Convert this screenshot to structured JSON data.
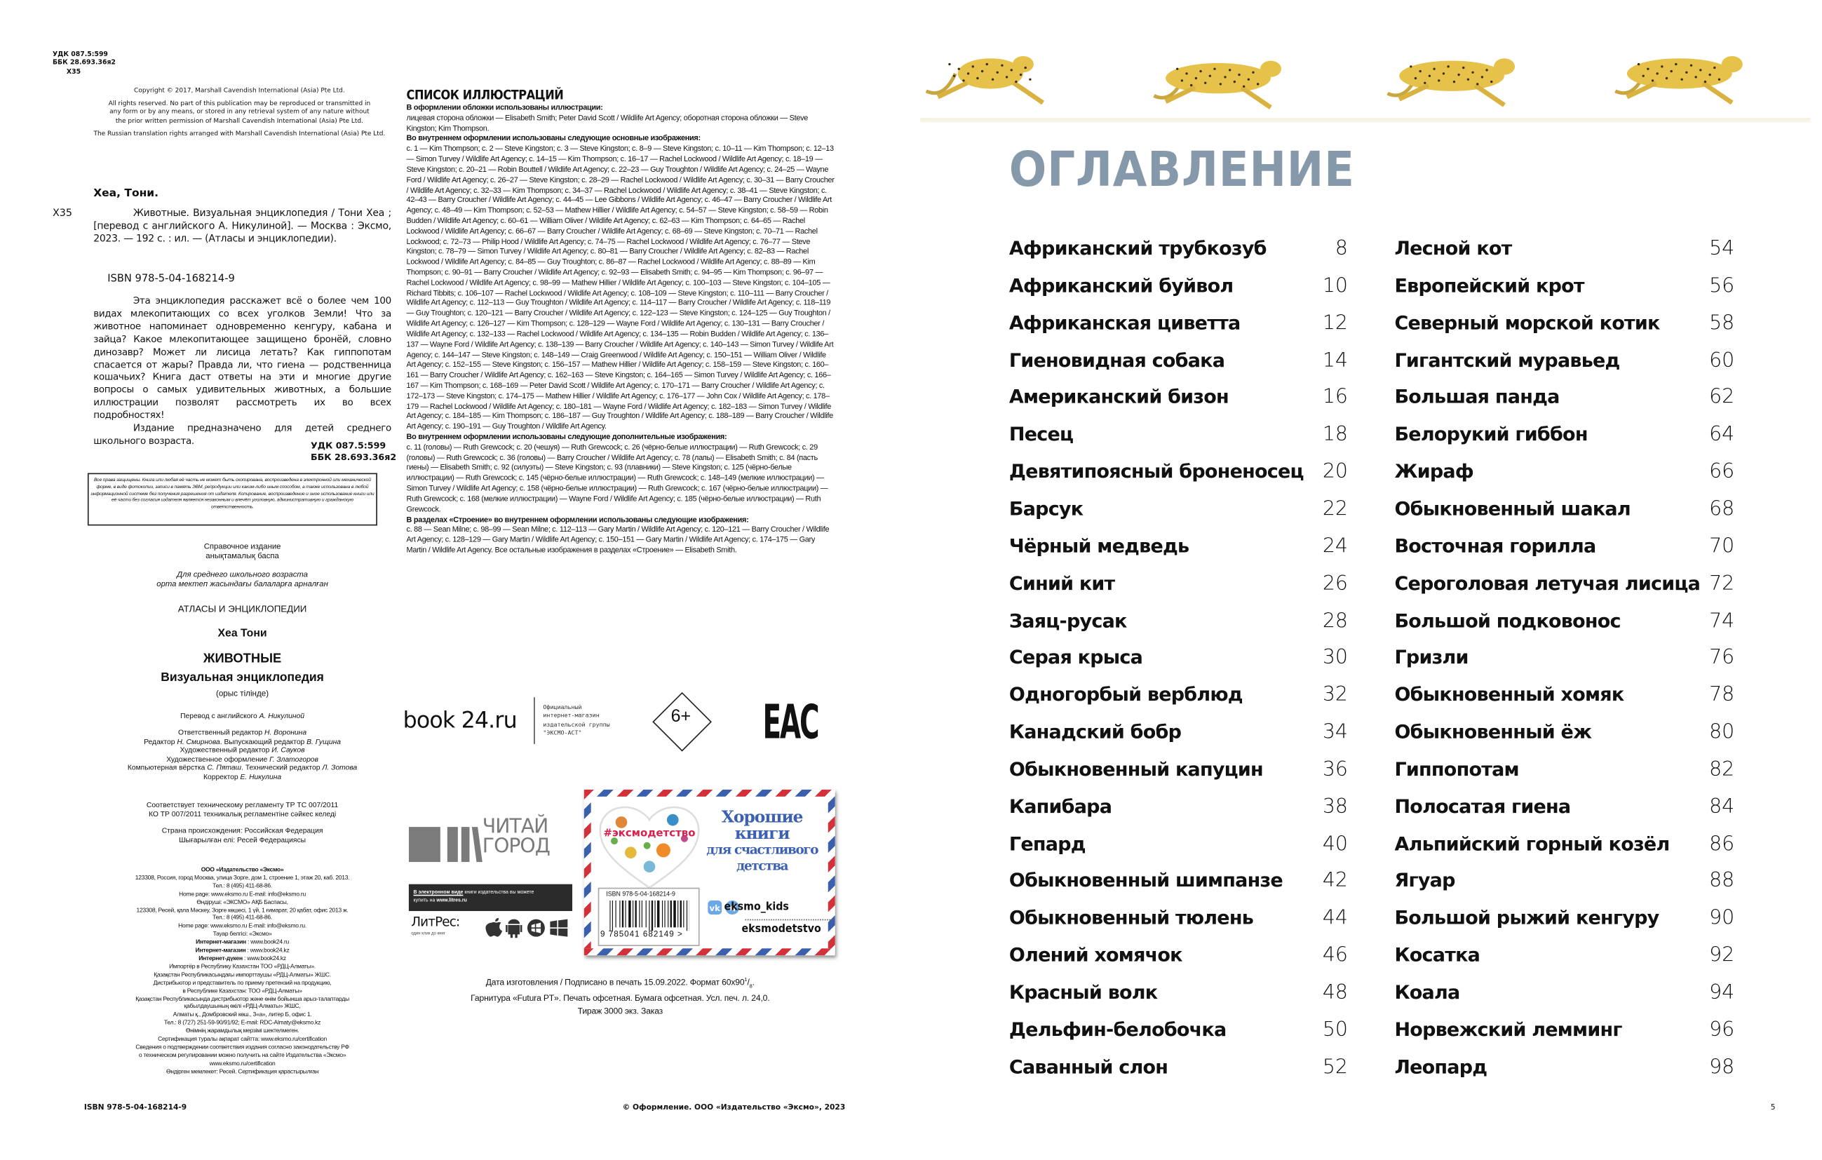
{
  "left_page": {
    "udk_top": [
      "УДК 087.5:599",
      "ББК 28.693.36я2",
      "Х35"
    ],
    "copyright": [
      "Copyright © 2017, Marshall Cavendish International (Asia) Pte Ltd.",
      "All rights reserved. No part of this publication may be reproduced or transmitted in any form or by any means, or stored in any retrieval system of any nature without the prior written permission of Marshall Cavendish International (Asia) Pte Ltd.",
      "The Russian translation rights arranged with Marshall Cavendish International (Asia) Pte Ltd."
    ],
    "author": "Хеа, Тони.",
    "shelf_mark": "Х35",
    "bibliographic": "Животные. Визуальная энциклопедия / Тони Хеа ; [перевод с английского А. Никулиной]. — Москва : Эксмо, 2023. — 192 с. : ил. — (Атласы и энциклопедии).",
    "isbn": "ISBN 978-5-04-168214-9",
    "annotation": [
      "Эта энциклопедия расскажет всё о более чем 100 видах млекопитающих со всех уголков Земли! Что за животное напоминает одновременно кенгуру, кабана и зайца? Какое млекопитающее защищено бронёй, словно динозавр? Может ли лисица летать? Как гиппопотам спасается от жары? Правда ли, что гиена — родственница кошачьих? Книга даст ответы на эти и многие другие вопросы о самых удивительных животных, а большие иллюстрации позволят рассмотреть их во всех подробностях!",
      "Издание предназначено для детей среднего школьного возраста."
    ],
    "udk_bottom": [
      "УДК 087.5:599",
      "ББК 28.693.36я2"
    ],
    "rights_notice": "Все права защищены. Книга или любая её часть не может быть скопирована, воспроизведена в электронной или механической форме, в виде фотокопии, записи в память ЭВМ, репродукции или каким-либо иным способом, а также использована в любой информационной системе без получения разрешения от издателя. Копирование, воспроизведение и иное использование книги или её части без согласия издателя является незаконным и влечёт уголовную, административную и гражданскую ответственность.",
    "edition_type": [
      "Справочное издание",
      "анықтамалық баспа"
    ],
    "audience": [
      "Для среднего школьного возраста",
      "орта мектеп жасындағы балаларға арналған"
    ],
    "series": "АТЛАСЫ И ЭНЦИКЛОПЕДИИ",
    "author_name": "Хеа Тони",
    "book_title": "ЖИВОТНЫЕ",
    "book_subtitle": "Визуальная энциклопедия",
    "language_note": "(орыс тілінде)",
    "translation": {
      "label": "Перевод с английского",
      "name": "А. Никулиной"
    },
    "credits": [
      [
        {
          "t": "Ответственный редактор "
        },
        {
          "i": "Н. Воронина"
        }
      ],
      [
        {
          "t": "Редактор "
        },
        {
          "i": "Н. Смирнова"
        },
        {
          "t": ". Выпускающий редактор "
        },
        {
          "i": "В. Гущина"
        }
      ],
      [
        {
          "t": "Художественный редактор "
        },
        {
          "i": "И. Сауков"
        }
      ],
      [
        {
          "t": "Художественное оформление "
        },
        {
          "i": "Г. Златогоров"
        }
      ],
      [
        {
          "t": "Компьютерная вёрстка "
        },
        {
          "i": "С. Пяташ"
        },
        {
          "t": ". Технический редактор "
        },
        {
          "i": "Л. Зотова"
        }
      ],
      [
        {
          "t": "Корректор "
        },
        {
          "i": "Е. Никулина"
        }
      ]
    ],
    "regulation": [
      "Соответствует техническому регламенту ТР ТС 007/2011",
      "КО ТР 007/2011 техникалық регламентіне сәйкес келеді"
    ],
    "origin": [
      "Страна происхождения: Российская Федерация",
      "Шығарылған елі: Ресей Федерациясы"
    ],
    "publisher_block": [
      {
        "b": "ООО «Издательство «Эксмо»"
      },
      {
        "t": "123308, Россия, город Москва, улица Зорге, дом 1, строение 1, этаж 20, каб. 2013."
      },
      {
        "t": "Тел.: 8 (495) 411-68-86."
      },
      {
        "t": "Home page: www.eksmo.ru    E-mail: info@eksmo.ru"
      },
      {
        "t": "Өндіруші: «ЭКСМО» АҚБ Баспасы,"
      },
      {
        "t": "123308, Ресей, қала Мәскеу, Зорге көшесі, 1 үй, 1 ғимарат, 20 қабат, офис 2013 ж."
      },
      {
        "t": "Тел.: 8 (495) 411-68-86."
      },
      {
        "t": "Home page: www.eksmo.ru    E-mail: info@eksmo.ru."
      },
      {
        "t": "Тауар белгісі: «Эксмо»"
      },
      {
        "b": "Интернет-магазин",
        "t": " : www.book24.ru"
      },
      {
        "b": "Интернет-магазин",
        "t": " : www.book24.kz"
      },
      {
        "b": "Интернет-дүкен",
        "t": " : www.book24.kz"
      },
      {
        "t": "Импортёр в Республику Казахстан ТОО «РДЦ-Алматы»."
      },
      {
        "t": "Қазақстан Республикасындағы импорттаушы «РДЦ-Алматы» ЖШС."
      },
      {
        "t": "Дистрибьютор и представитель по приему претензий на продукцию,"
      },
      {
        "t": "в Республике Казахстан: ТОО «РДЦ-Алматы»"
      },
      {
        "t": "Қазақстан Республикасында дистрибьютор және өнім бойынша арыз-талаптарды"
      },
      {
        "t": "қабылдаушының өкілі «РДЦ-Алматы» ЖШС,"
      },
      {
        "t": "Алматы қ., Домбровский көш., 3«а», литер Б, офис 1."
      },
      {
        "t": "Тел.: 8 (727) 251-59-90/91/92; E-mail: RDC-Almaty@eksmo.kz"
      },
      {
        "t": "Өнімнің жарамдылық мерзімі шектелмеген."
      },
      {
        "t": "Сертификация туралы ақпарат сайтта: www.eksmo.ru/certification"
      },
      {
        "t": "Сведения о подтверждении соответствия издания согласно законодательству РФ"
      },
      {
        "t": "о техническом регулировании можно получить на сайте Издательства «Эксмо»"
      },
      {
        "t": "www.eksmo.ru/certification"
      },
      {
        "t": "Өндірген мемлекет: Ресей. Сертификация қарастырылған"
      }
    ],
    "footer_isbn": "ISBN 978-5-04-168214-9"
  },
  "middle": {
    "title": "СПИСОК ИЛЛЮСТРАЦИЙ",
    "sections": [
      {
        "heading": "В оформлении обложки использованы иллюстрации:",
        "text": "лицевая сторона обложки — Elisabeth Smith; Peter David Scott / Wildlife Art Agency; оборотная сторона обложки — Steve Kingston; Kim Thompson."
      },
      {
        "heading": "Во внутреннем оформлении использованы следующие основные изображения:",
        "text": "с. 1 — Kim Thompson; с. 2 — Steve Kingston; с. 3 — Steve Kingston; с. 8–9 — Steve Kingston; с. 10–11 — Kim Thompson; с. 12–13 — Simon Turvey / Wildlife Art Agency; с. 14–15 — Kim Thompson; с. 16–17 — Rachel Lockwood / Wildlife Art Agency; с. 18–19 — Steve Kingston; с. 20–21 — Robin Bouttell / Wildlife Art Agency; с. 22–23 — Guy Troughton / Wildlife Art Agency; с. 24–25 — Wayne Ford / Wildlife Art Agency; с. 26–27 — Steve Kingston; с. 28–29 — Rachel Lockwood / Wildlife Art Agency; с. 30–31 — Barry Croucher / Wildlife Art Agency; с. 32–33 — Kim Thompson; с. 34–37 — Rachel Lockwood / Wildlife Art Agency; с. 38–41 — Steve Kingston; с. 42–43 — Barry Croucher / Wildlife Art Agency; с. 44–45 — Lee Gibbons / Wildlife Art Agency; с. 46–47 — Barry Croucher / Wildlife Art Agency; с. 48–49 — Kim Thompson; с. 52–53 — Mathew Hillier / Wildlife Art Agency; с. 54–57 — Steve Kingston; с. 58–59 — Robin Budden / Wildlife Art Agency; с. 60–61 — William Oliver / Wildlife Art Agency; с. 62–63 — Kim Thompson; с. 64–65 — Rachel Lockwood / Wildlife Art Agency; с. 66–67 — Barry Croucher / Wildlife Art Agency; с. 68–69 — Steve Kingston; с. 70–71 — Rachel Lockwood; с. 72–73 — Philip Hood / Wildlife Art Agency; с. 74–75 — Rachel Lockwood / Wildlife Art Agency; с. 76–77 — Steve Kingston; с. 78–79 — Simon Turvey / Wildlife Art Agency; с. 80–81 — Barry Croucher / Wildlife Art Agency; с. 82–83 — Rachel Lockwood / Wildlife Art Agency; с. 84–85 — Guy Troughton; с. 86–87 — Rachel Lockwood / Wildlife Art Agency; с. 88–89 — Kim Thompson; с. 90–91 — Barry Croucher / Wildlife Art Agency; с. 92–93 — Elisabeth Smith; с. 94–95 — Kim Thompson; с. 96–97 — Rachel Lockwood / Wildlife Art Agency; с. 98–99 — Mathew Hillier / Wildlife Art Agency; с. 100–103 — Steve Kingston; с. 104–105 — Richard Tibbits; с. 106–107 — Rachel Lockwood / Wildlife Art Agency; с. 108–109 — Steve Kingston; с. 110–111 — Barry Croucher / Wildlife Art Agency; с. 112–113 — Guy Troughton / Wildlife Art Agency; с. 114–117 — Barry Croucher / Wildlife Art Agency; с. 118–119 — Guy Troughton; с. 120–121 — Barry Croucher / Wildlife Art Agency; с. 122–123 — Steve Kingston; с. 124–125 — Guy Troughton / Wildlife Art Agency; с. 126–127 — Kim Thompson; с. 128–129 — Wayne Ford / Wildlife Art Agency; с. 130–131 — Barry Croucher / Wildlife Art Agency; с. 132–133 — Rachel Lockwood / Wildlife Art Agency; с. 134–135 — Robin Budden / Wildlife Art Agency; с. 136–137 — Wayne Ford / Wildlife Art Agency; с. 138–139 — Barry Croucher / Wildlife Art Agency; с. 140–143 — Simon Turvey / Wildlife Art Agency; с. 144–147 — Steve Kingston; с. 148–149 — Craig Greenwood / Wildlife Art Agency; с. 150–151 — William Oliver / Wildlife Art Agency; с. 152–155 — Steve Kingston; с. 156–157 — Mathew Hillier / Wildlife Art Agency; с. 158–159 — Steve Kingston; с. 160–161 — Barry Croucher / Wildlife Art Agency; с. 162–163 — Steve Kingston; с. 164–165 — Simon Turvey / Wildlife Art Agency; с. 166–167 — Kim Thompson; с. 168–169 — Peter David Scott / Wildlife Art Agency; с. 170–171 — Barry Croucher / Wildlife Art Agency; с. 172–173 — Steve Kingston; с. 174–175 — Mathew Hillier / Wildlife Art Agency; с. 176–177 — John Cox / Wildlife Art Agency; с. 178–179 — Rachel Lockwood / Wildlife Art Agency; с. 180–181 — Wayne Ford / Wildlife Art Agency; с. 182–183 — Simon Turvey / Wildlife Art Agency; с. 184–185 — Kim Thompson; с. 186–187 — Guy Troughton / Wildlife Art Agency; с. 188–189 — Barry Croucher / Wildlife Art Agency; с. 190–191 — Guy Troughton / Wildlife Art Agency."
      },
      {
        "heading": "Во внутреннем оформлении использованы следующие дополнительные изображения:",
        "text": "с. 11 (головы) — Ruth Grewcock; с. 20 (чешуя) — Ruth Grewcock; с. 26 (чёрно-белые иллюстрации) — Ruth Grewcock; с. 29 (головы) — Ruth Grewcock; с. 36 (головы) — Barry Croucher / Wildlife Art Agency; с. 78 (лапы) — Elisabeth Smith; с. 84 (пасть гиены) — Elisabeth Smith; с. 92 (силуэты) — Steve Kingston; с. 93 (плавники) — Steve Kingston; с. 125 (чёрно-белые иллюстрации) — Ruth Grewcock; с. 145 (чёрно-белые иллюстрации) — Ruth Grewcock; с. 148–149 (мелкие иллюстрации) — Simon Turvey / Wildlife Art Agency; с. 158 (чёрно-белые иллюстрации) — Ruth Grewcock; с. 167 (чёрно-белые иллюстрации) — Ruth Grewcock; с. 168 (мелкие иллюстрации) — Wayne Ford / Wildlife Art Agency; с. 185 (чёрно-белые иллюстрации) — Ruth Grewcock."
      },
      {
        "heading": "В разделах «Строение» во внутреннем оформлении использованы следующие изображения:",
        "text": "с. 88 — Sean Milne; с. 98–99 — Sean Milne; с. 112–113 — Gary Martin / Wildlife Art Agency; с. 120–121 — Barry Croucher / Wildlife Art Agency; с. 128–129 — Gary Martin / Wildlife Art Agency; с. 150–151 — Gary Martin / Wildlife Art Agency; с. 174–175 — Gary Martin / Wildlife Art Agency. Все остальные изображения в разделах «Строение» — Elisabeth Smith."
      }
    ],
    "book24": {
      "logo": "book 24.ru",
      "caption": [
        "Официальный",
        "интернет-магазин",
        "издательской группы",
        "\"ЭКСМО-АСТ\""
      ]
    },
    "age_rating": "6+",
    "eac_mark": "ЕАС",
    "chitai_gorod": [
      "ЧИТАЙ",
      "ГОРОД"
    ],
    "litres": {
      "banner_bold": "В электронном виде",
      "banner_text": " книги издательства вы можете",
      "banner_line2": "купить на ",
      "banner_url": "www.litres.ru",
      "logo": "ЛитРес:",
      "tagline": "один клик до книг",
      "platform_icons": [
        "apple-icon",
        "android-icon",
        "windows-phone-icon",
        "windows-icon"
      ]
    },
    "promo_card": {
      "hashtag": "#эксмодетство",
      "headline": [
        "Хорошие",
        "книги",
        "для счастливого",
        "детства"
      ],
      "isbn": "ISBN 978-5-04-168214-9",
      "barcode_digits": "9 785041 682149 >",
      "social_primary": "eksmo_kids",
      "social_secondary": "eksmodetstvo",
      "colors": {
        "blue": "#3c61b0",
        "red": "#d3303a"
      }
    },
    "print_info": [
      "Дата изготовления / Подписано в печать 15.09.2022. Формат 60x90",
      "1",
      "8",
      ".",
      "Гарнитура «Futura PT». Печать офсетная. Бумага офсетная. Усл. печ. л. 24,0.",
      "Тираж 3000 экз. Заказ"
    ],
    "footer": "© Оформление. ООО «Издательство «Эксмо», 2023"
  },
  "toc": {
    "title": "ОГЛАВЛЕНИЕ",
    "title_color": "#8699aa",
    "left": [
      [
        "Африканский трубкозуб",
        "8"
      ],
      [
        "Африканский буйвол",
        "10"
      ],
      [
        "Африканская циветта",
        "12"
      ],
      [
        "Гиеновидная собака",
        "14"
      ],
      [
        "Американский бизон",
        "16"
      ],
      [
        "Песец",
        "18"
      ],
      [
        "Девятипоясный броненосец",
        "20"
      ],
      [
        "Барсук",
        "22"
      ],
      [
        "Чёрный медведь",
        "24"
      ],
      [
        "Синий кит",
        "26"
      ],
      [
        "Заяц-русак",
        "28"
      ],
      [
        "Серая крыса",
        "30"
      ],
      [
        "Одногорбый верблюд",
        "32"
      ],
      [
        "Канадский бобр",
        "34"
      ],
      [
        "Обыкновенный капуцин",
        "36"
      ],
      [
        "Капибара",
        "38"
      ],
      [
        "Гепард",
        "40"
      ],
      [
        "Обыкновенный шимпанзе",
        "42"
      ],
      [
        "Обыкновенный тюлень",
        "44"
      ],
      [
        "Олений хомячок",
        "46"
      ],
      [
        "Красный волк",
        "48"
      ],
      [
        "Дельфин-белобочка",
        "50"
      ],
      [
        "Саванный слон",
        "52"
      ]
    ],
    "right": [
      [
        "Лесной кот",
        "54"
      ],
      [
        "Европейский крот",
        "56"
      ],
      [
        "Северный морской котик",
        "58"
      ],
      [
        "Гигантский муравьед",
        "60"
      ],
      [
        "Большая панда",
        "62"
      ],
      [
        "Белорукий гиббон",
        "64"
      ],
      [
        "Жираф",
        "66"
      ],
      [
        "Обыкновенный шакал",
        "68"
      ],
      [
        "Восточная горилла",
        "70"
      ],
      [
        "Сероголовая летучая лисица",
        "72"
      ],
      [
        "Большой подковонос",
        "74"
      ],
      [
        "Гризли",
        "76"
      ],
      [
        "Обыкновенный хомяк",
        "78"
      ],
      [
        "Обыкновенный ёж",
        "80"
      ],
      [
        "Гиппопотам",
        "82"
      ],
      [
        "Полосатая гиена",
        "84"
      ],
      [
        "Альпийский горный козёл",
        "86"
      ],
      [
        "Ягуар",
        "88"
      ],
      [
        "Большой рыжий кенгуру",
        "90"
      ],
      [
        "Косатка",
        "92"
      ],
      [
        "Коала",
        "94"
      ],
      [
        "Норвежский лемминг",
        "96"
      ],
      [
        "Леопард",
        "98"
      ]
    ],
    "page_number": "5"
  }
}
